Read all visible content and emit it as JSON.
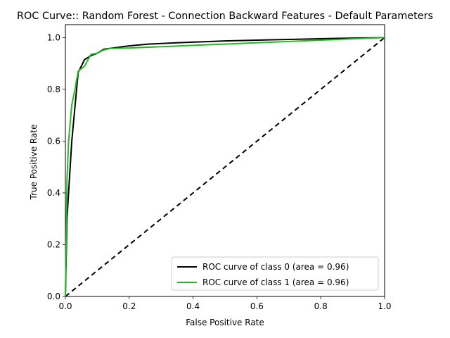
{
  "chart_data": {
    "type": "line",
    "title": "ROC Curve:: Random Forest - Connection Backward Features - Default Parameters",
    "xlabel": "False Positive Rate",
    "ylabel": "True Positive Rate",
    "xlim": [
      0.0,
      1.0
    ],
    "ylim": [
      0.0,
      1.05
    ],
    "xticks": [
      "0.0",
      "0.2",
      "0.4",
      "0.6",
      "0.8",
      "1.0"
    ],
    "yticks": [
      "0.0",
      "0.2",
      "0.4",
      "0.6",
      "0.8",
      "1.0"
    ],
    "grid": false,
    "legend_position": "lower right",
    "series": [
      {
        "name": "ROC curve of class 0 (area = 0.96)",
        "color": "#000000",
        "style": "solid",
        "x": [
          0.0,
          0.005,
          0.02,
          0.04,
          0.06,
          0.08,
          0.1,
          0.12,
          0.15,
          0.2,
          0.26,
          0.35,
          0.5,
          0.7,
          0.85,
          1.0
        ],
        "y": [
          0.0,
          0.3,
          0.6,
          0.865,
          0.915,
          0.93,
          0.94,
          0.955,
          0.96,
          0.968,
          0.975,
          0.98,
          0.987,
          0.993,
          0.997,
          1.0
        ]
      },
      {
        "name": "ROC curve of class 1 (area = 0.96)",
        "color": "#22bb22",
        "style": "solid",
        "x": [
          0.0,
          0.005,
          0.01,
          0.02,
          0.03,
          0.04,
          0.06,
          0.08,
          0.1,
          0.12,
          0.14,
          0.2,
          0.4,
          0.6,
          0.8,
          1.0
        ],
        "y": [
          0.0,
          0.45,
          0.6,
          0.74,
          0.8,
          0.87,
          0.89,
          0.935,
          0.94,
          0.952,
          0.958,
          0.96,
          0.97,
          0.98,
          0.99,
          1.0
        ]
      },
      {
        "name": "",
        "color": "#000000",
        "style": "dashed",
        "x": [
          0.0,
          1.0
        ],
        "y": [
          0.0,
          1.0
        ]
      }
    ]
  }
}
